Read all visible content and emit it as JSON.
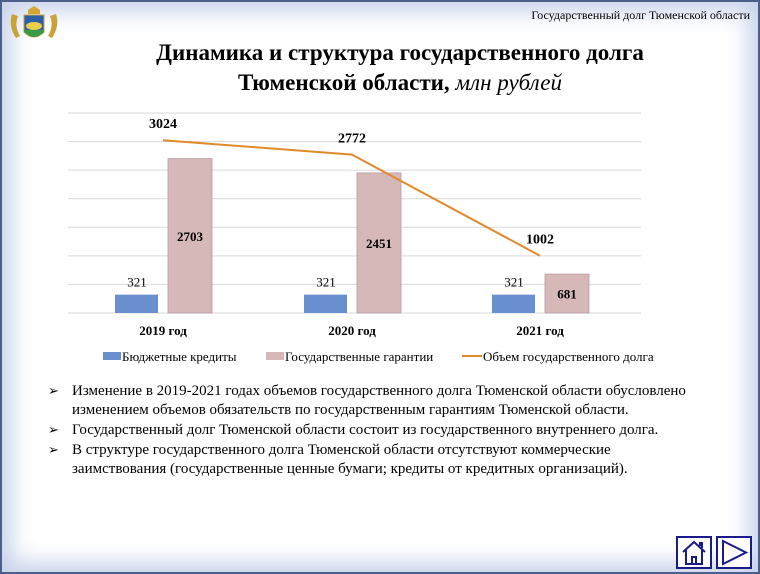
{
  "header": {
    "note": "Государственный долг Тюменской области"
  },
  "title": {
    "line1": "Динамика и структура государственного долга",
    "line2_bold": "Тюменской области,",
    "line2_italic": "млн рублей"
  },
  "chart_data": {
    "type": "bar",
    "categories": [
      "2019 год",
      "2020 год",
      "2021 год"
    ],
    "series": [
      {
        "name": "Бюджетные кредиты",
        "type": "bar",
        "color": "#6a8fce",
        "values": [
          321,
          321,
          321
        ]
      },
      {
        "name": "Государственные гарантии",
        "type": "bar",
        "color": "#d6b8b8",
        "values": [
          2703,
          2451,
          681
        ]
      },
      {
        "name": "Объем государственного долга",
        "type": "line",
        "color": "#e08a2a",
        "values": [
          3024,
          2772,
          1002
        ]
      }
    ],
    "ylim": [
      0,
      3500
    ],
    "grid": true,
    "legend": "bottom"
  },
  "bullets": [
    "Изменение в 2019-2021  годах объемов государственного долга Тюменской области обусловлено изменением объемов обязательств по государственным гарантиям Тюменской области.",
    "Государственный долг Тюменской области состоит из государственного внутреннего долга.",
    "В структуре государственного долга Тюменской области  отсутствуют коммерческие заимствования (государственные ценные бумаги; кредиты от кредитных организаций)."
  ],
  "nav": {
    "home_icon": "home-icon",
    "next_icon": "play-triangle-icon"
  }
}
